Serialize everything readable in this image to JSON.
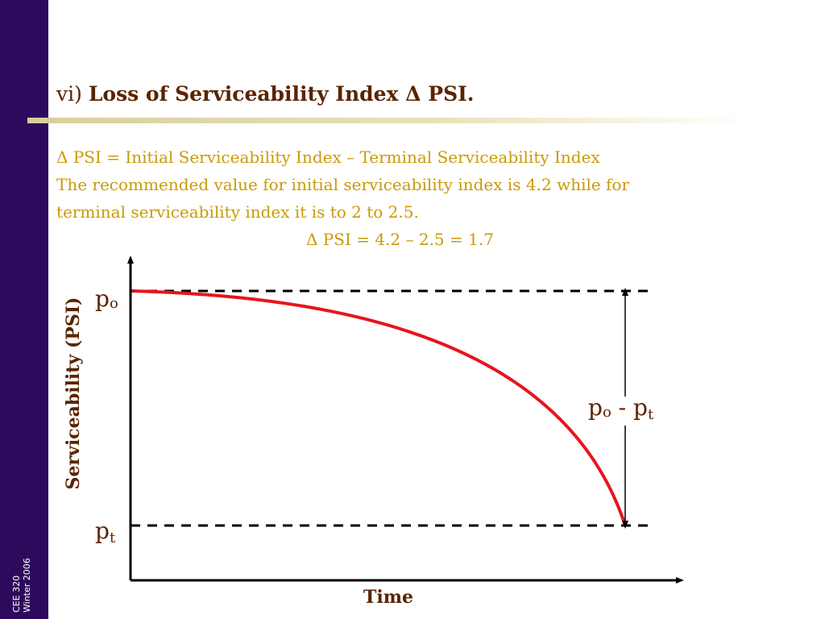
{
  "sidebar": {
    "course": "CEE 320",
    "term": "Winter 2006"
  },
  "slide": {
    "title_prefix": "vi)",
    "title_main": "Loss of Serviceability Index Δ PSI.",
    "lines": [
      "Δ PSI = Initial Serviceability Index – Terminal Serviceability Index",
      "The recommended value for initial serviceability index is 4.2 while for",
      "terminal serviceability index it is to 2 to 2.5."
    ],
    "equation": "Δ PSI = 4.2 – 2.5 = 1.7"
  },
  "diagram": {
    "y_axis_label": "Serviceability (PSI)",
    "x_axis_label": "Time",
    "p0_label": {
      "base": "p",
      "sub": "o"
    },
    "pt_label": {
      "base": "p",
      "sub": "t"
    },
    "difference_label": {
      "a_base": "p",
      "a_sub": "o",
      "op": " - ",
      "b_base": "p",
      "b_sub": "t"
    },
    "colors": {
      "curve": "#e8141c",
      "axis": "#000000",
      "text": "#5a2400",
      "body_text": "#c99a05",
      "sidebar": "#2e0a5c"
    }
  }
}
